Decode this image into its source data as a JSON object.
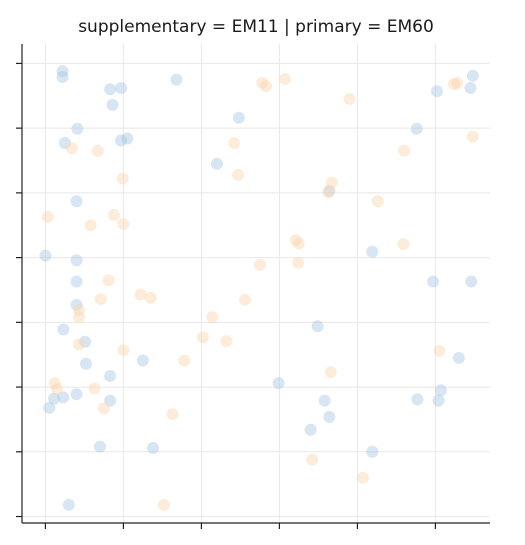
{
  "chart_data": {
    "type": "scatter",
    "title": "supplementary = EM11 | primary = EM60",
    "xlabel": "",
    "ylabel": "",
    "xlim": [
      -0.3,
      5.7
    ],
    "ylim": [
      -0.1,
      7.3
    ],
    "x_ticks": [
      0,
      1,
      2,
      3,
      4,
      5
    ],
    "y_ticks": [
      0,
      1,
      2,
      3,
      4,
      5,
      6,
      7
    ],
    "grid": true,
    "legend": "none",
    "series": [
      {
        "color": "#a6c8e2",
        "points": [
          [
            0.22,
            6.88
          ],
          [
            0.22,
            6.79
          ],
          [
            0.83,
            6.6
          ],
          [
            0.97,
            6.62
          ],
          [
            1.68,
            6.75
          ],
          [
            0.86,
            6.36
          ],
          [
            2.48,
            6.16
          ],
          [
            0.41,
            5.99
          ],
          [
            1.05,
            5.84
          ],
          [
            0.97,
            5.81
          ],
          [
            0.25,
            5.77
          ],
          [
            2.2,
            5.45
          ],
          [
            4.76,
            5.99
          ],
          [
            5.02,
            6.57
          ],
          [
            5.45,
            6.62
          ],
          [
            5.48,
            6.81
          ],
          [
            0.4,
            4.87
          ],
          [
            3.64,
            5.03
          ],
          [
            0.0,
            4.03
          ],
          [
            0.4,
            3.96
          ],
          [
            0.4,
            3.63
          ],
          [
            4.19,
            4.09
          ],
          [
            4.97,
            3.63
          ],
          [
            5.46,
            3.63
          ],
          [
            0.4,
            3.27
          ],
          [
            0.23,
            2.89
          ],
          [
            0.51,
            2.7
          ],
          [
            3.49,
            2.94
          ],
          [
            1.25,
            2.41
          ],
          [
            0.52,
            2.36
          ],
          [
            0.83,
            2.17
          ],
          [
            5.3,
            2.45
          ],
          [
            2.99,
            2.06
          ],
          [
            0.05,
            1.68
          ],
          [
            0.11,
            1.82
          ],
          [
            0.23,
            1.84
          ],
          [
            0.4,
            1.89
          ],
          [
            0.83,
            1.79
          ],
          [
            3.58,
            1.79
          ],
          [
            4.77,
            1.81
          ],
          [
            5.04,
            1.79
          ],
          [
            5.07,
            1.95
          ],
          [
            3.4,
            1.34
          ],
          [
            3.64,
            1.54
          ],
          [
            0.7,
            1.08
          ],
          [
            1.38,
            1.06
          ],
          [
            4.19,
            1.0
          ],
          [
            0.3,
            0.18
          ]
        ]
      },
      {
        "color": "#fcd5b0",
        "points": [
          [
            2.78,
            6.7
          ],
          [
            2.83,
            6.65
          ],
          [
            3.07,
            6.76
          ],
          [
            3.9,
            6.45
          ],
          [
            5.24,
            6.68
          ],
          [
            5.28,
            6.7
          ],
          [
            0.34,
            5.69
          ],
          [
            0.67,
            5.65
          ],
          [
            2.42,
            5.77
          ],
          [
            5.48,
            5.87
          ],
          [
            4.6,
            5.65
          ],
          [
            2.47,
            5.28
          ],
          [
            0.99,
            5.22
          ],
          [
            3.67,
            5.16
          ],
          [
            3.63,
            5.01
          ],
          [
            4.26,
            4.87
          ],
          [
            0.03,
            4.63
          ],
          [
            0.58,
            4.5
          ],
          [
            0.88,
            4.66
          ],
          [
            1.0,
            4.52
          ],
          [
            3.21,
            4.27
          ],
          [
            3.25,
            4.22
          ],
          [
            4.59,
            4.21
          ],
          [
            2.75,
            3.89
          ],
          [
            3.24,
            3.92
          ],
          [
            0.81,
            3.65
          ],
          [
            0.71,
            3.36
          ],
          [
            1.22,
            3.43
          ],
          [
            1.35,
            3.38
          ],
          [
            2.56,
            3.35
          ],
          [
            0.43,
            3.19
          ],
          [
            0.43,
            3.08
          ],
          [
            2.14,
            3.08
          ],
          [
            2.02,
            2.77
          ],
          [
            2.32,
            2.71
          ],
          [
            0.43,
            2.66
          ],
          [
            1.0,
            2.57
          ],
          [
            1.78,
            2.41
          ],
          [
            5.05,
            2.56
          ],
          [
            0.12,
            2.06
          ],
          [
            0.15,
            1.97
          ],
          [
            0.63,
            1.98
          ],
          [
            3.66,
            2.23
          ],
          [
            0.75,
            1.67
          ],
          [
            1.63,
            1.58
          ],
          [
            3.42,
            0.88
          ],
          [
            4.07,
            0.6
          ],
          [
            1.52,
            0.18
          ]
        ]
      }
    ]
  }
}
